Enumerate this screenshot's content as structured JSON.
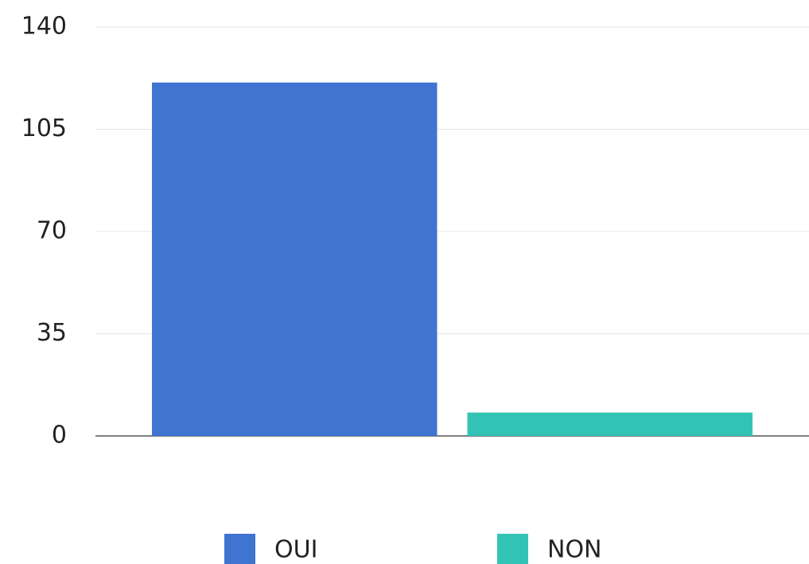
{
  "chart_data": {
    "type": "bar",
    "categories": [
      null
    ],
    "series": [
      {
        "name": "OUI",
        "color": "#3f74d1",
        "values": [
          121
        ]
      },
      {
        "name": "NON",
        "color": "#33c3b5",
        "values": [
          8
        ]
      }
    ],
    "ylim": [
      0,
      140
    ],
    "yticks": [
      0,
      35,
      70,
      105,
      140
    ],
    "grid": true,
    "legend": "bottom"
  }
}
